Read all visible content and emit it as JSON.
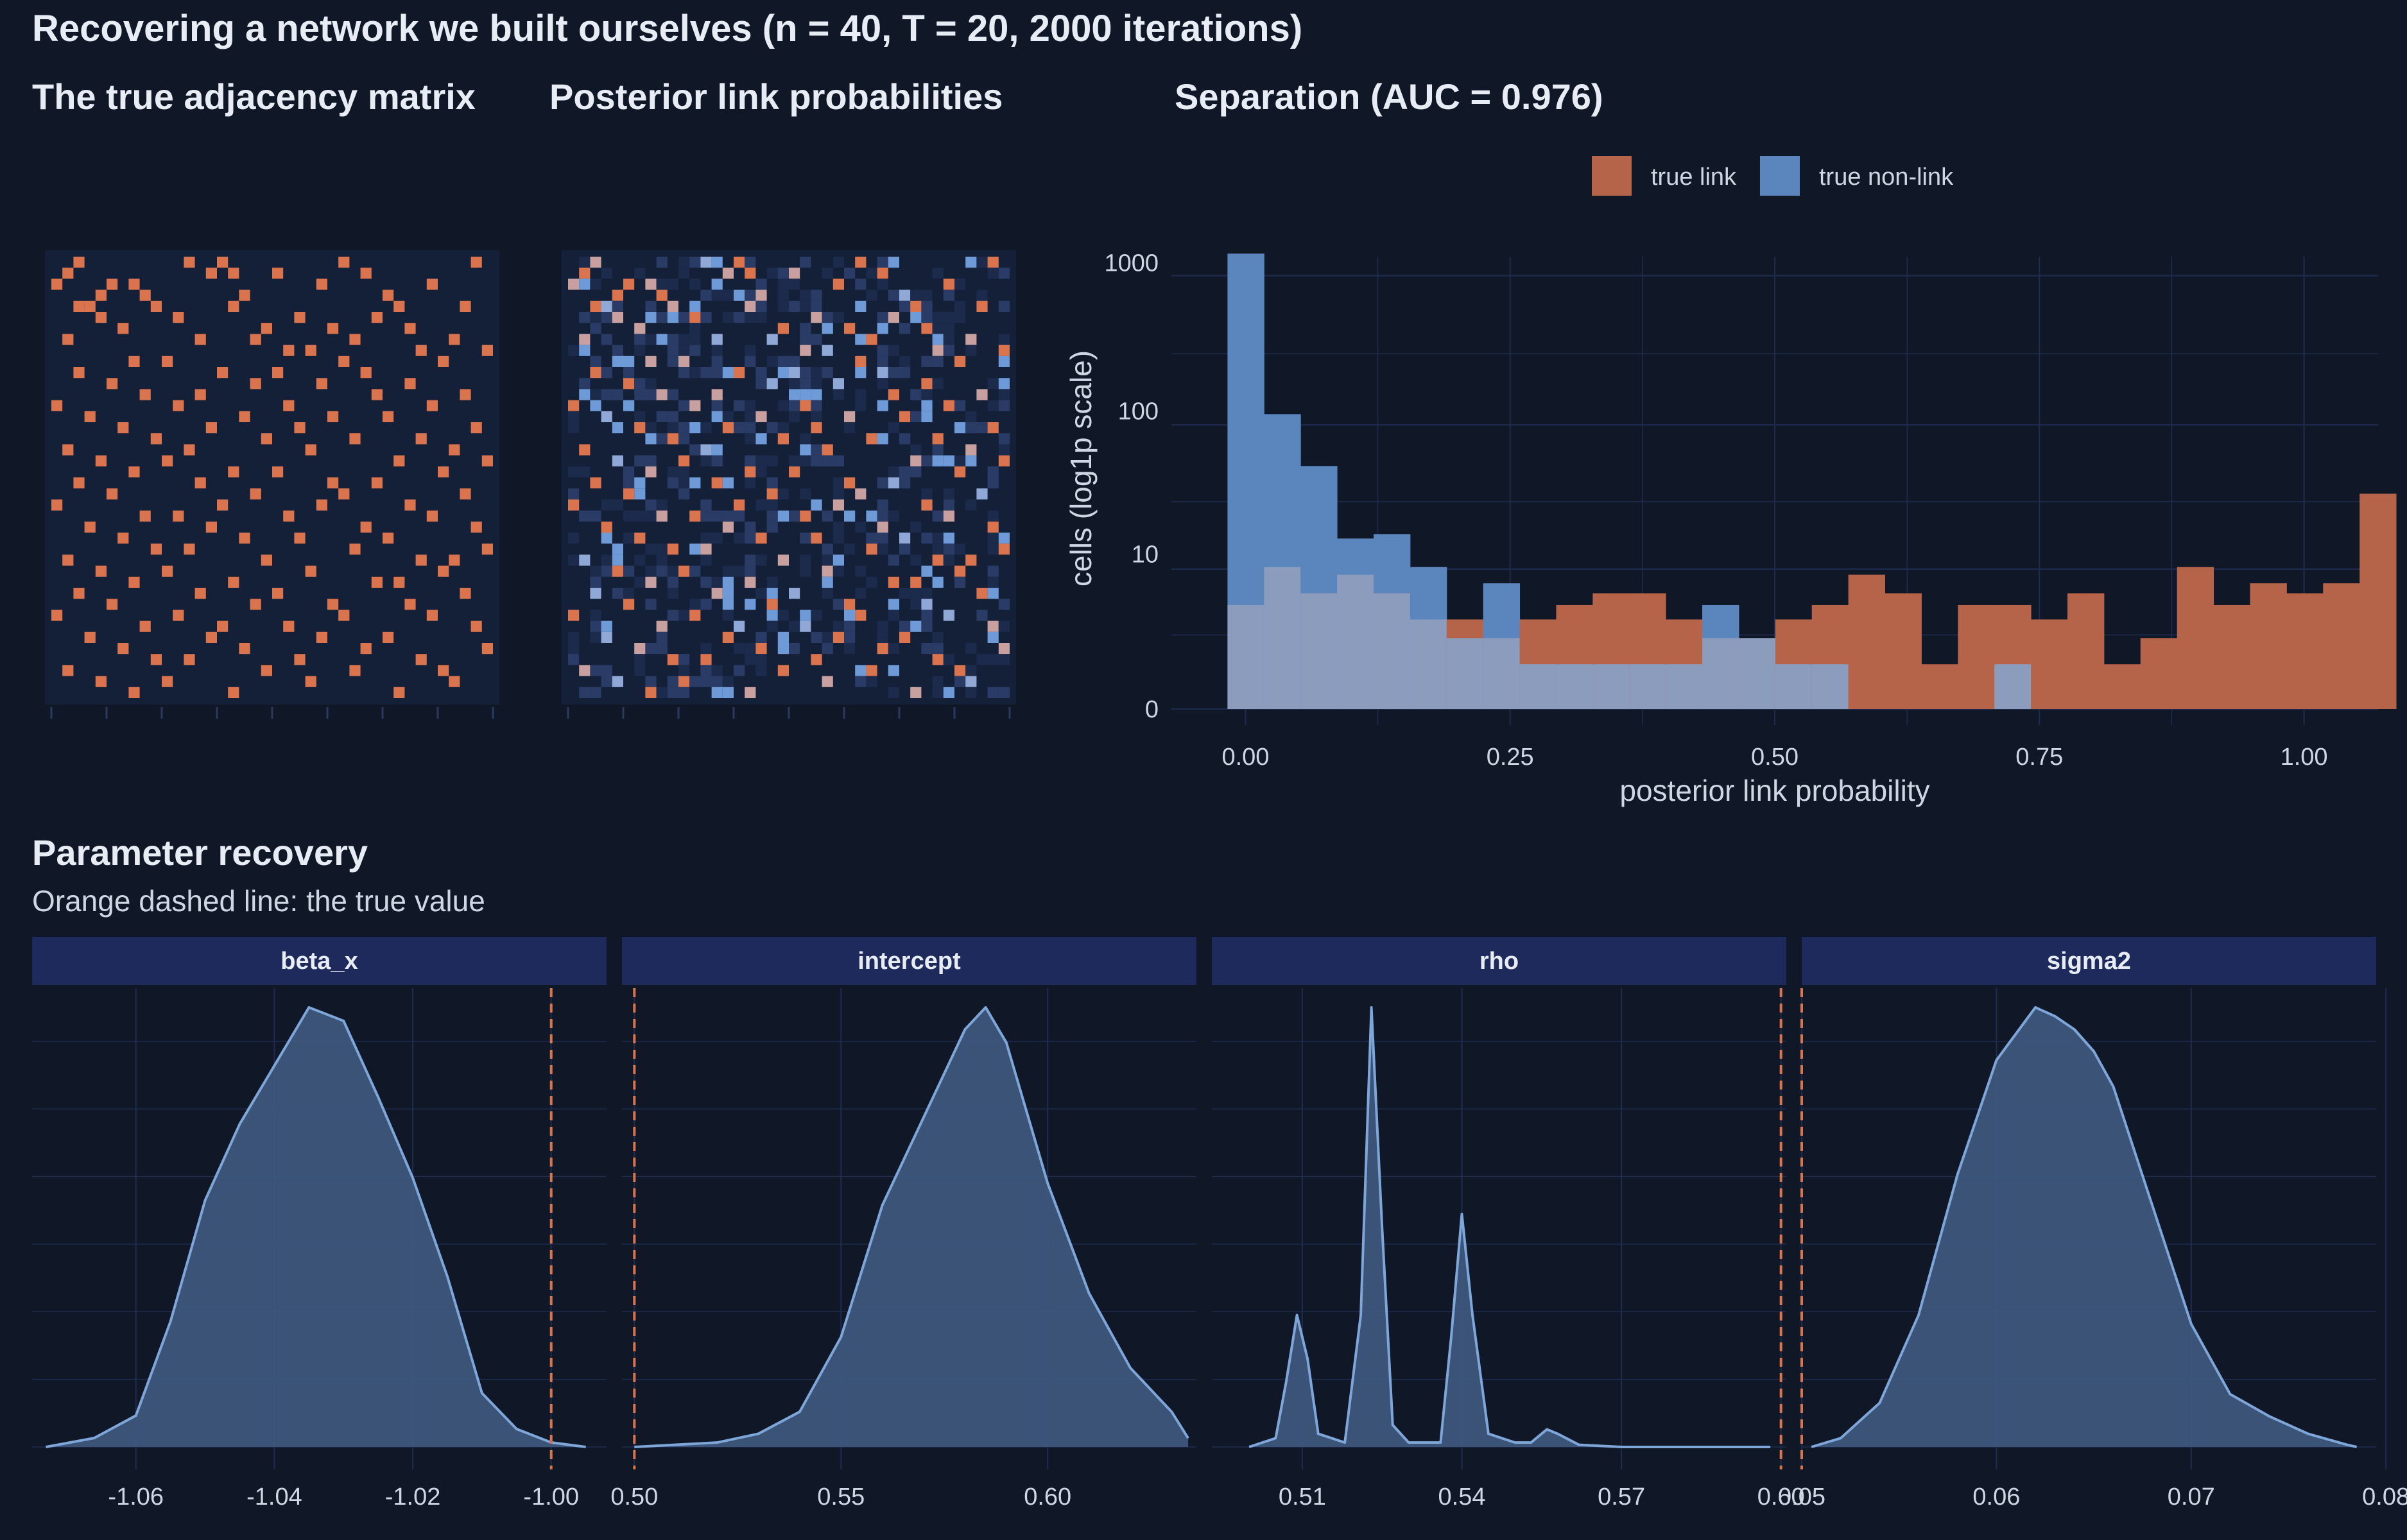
{
  "page": {
    "title": "Recovering a network we built ourselves (n = 40, T = 20, 2000 iterations)"
  },
  "colors": {
    "background": "#101828",
    "panel": "#141f38",
    "grid": "#1f2c4f",
    "link": "#d9744f",
    "nonlink": "#5a86bd",
    "overlap": "#8b9cbd",
    "density_fill": "#3f5a80",
    "density_line": "#7ea6d8",
    "strip": "#1e2a5c",
    "text": "#e8ecf5",
    "tick_text": "#cfd6e4"
  },
  "chart_data": [
    {
      "type": "heatmap",
      "title": "The true adjacency matrix",
      "n": 40,
      "values_description_note": "",
      "links": [
        [
          1,
          3
        ],
        [
          1,
          13
        ],
        [
          1,
          16
        ],
        [
          1,
          27
        ],
        [
          1,
          39
        ],
        [
          2,
          2
        ],
        [
          2,
          15
        ],
        [
          2,
          17
        ],
        [
          2,
          21
        ],
        [
          2,
          29
        ],
        [
          3,
          1
        ],
        [
          3,
          6
        ],
        [
          3,
          8
        ],
        [
          3,
          25
        ],
        [
          3,
          35
        ],
        [
          4,
          5
        ],
        [
          4,
          9
        ],
        [
          4,
          18
        ],
        [
          4,
          31
        ],
        [
          5,
          3
        ],
        [
          5,
          4
        ],
        [
          5,
          10
        ],
        [
          5,
          17
        ],
        [
          5,
          32
        ],
        [
          5,
          38
        ],
        [
          6,
          5
        ],
        [
          6,
          12
        ],
        [
          6,
          23
        ],
        [
          6,
          30
        ],
        [
          7,
          7
        ],
        [
          7,
          20
        ],
        [
          7,
          26
        ],
        [
          7,
          33
        ],
        [
          8,
          2
        ],
        [
          8,
          14
        ],
        [
          8,
          19
        ],
        [
          8,
          28
        ],
        [
          8,
          37
        ],
        [
          9,
          22
        ],
        [
          9,
          24
        ],
        [
          9,
          34
        ],
        [
          9,
          40
        ],
        [
          10,
          8
        ],
        [
          10,
          11
        ],
        [
          10,
          27
        ],
        [
          10,
          36
        ],
        [
          11,
          3
        ],
        [
          11,
          16
        ],
        [
          11,
          21
        ],
        [
          11,
          29
        ],
        [
          12,
          6
        ],
        [
          12,
          19
        ],
        [
          12,
          25
        ],
        [
          12,
          33
        ],
        [
          13,
          9
        ],
        [
          13,
          14
        ],
        [
          13,
          30
        ],
        [
          13,
          38
        ],
        [
          14,
          1
        ],
        [
          14,
          12
        ],
        [
          14,
          22
        ],
        [
          14,
          35
        ],
        [
          15,
          4
        ],
        [
          15,
          18
        ],
        [
          15,
          26
        ],
        [
          15,
          31
        ],
        [
          16,
          7
        ],
        [
          16,
          15
        ],
        [
          16,
          23
        ],
        [
          16,
          39
        ],
        [
          17,
          10
        ],
        [
          17,
          20
        ],
        [
          17,
          28
        ],
        [
          17,
          34
        ],
        [
          18,
          2
        ],
        [
          18,
          13
        ],
        [
          18,
          24
        ],
        [
          18,
          37
        ],
        [
          19,
          5
        ],
        [
          19,
          11
        ],
        [
          19,
          32
        ],
        [
          19,
          40
        ],
        [
          20,
          8
        ],
        [
          20,
          17
        ],
        [
          20,
          21
        ],
        [
          20,
          36
        ],
        [
          21,
          3
        ],
        [
          21,
          14
        ],
        [
          21,
          26
        ],
        [
          21,
          30
        ],
        [
          22,
          6
        ],
        [
          22,
          19
        ],
        [
          22,
          27
        ],
        [
          22,
          38
        ],
        [
          23,
          1
        ],
        [
          23,
          16
        ],
        [
          23,
          25
        ],
        [
          23,
          33
        ],
        [
          24,
          9
        ],
        [
          24,
          12
        ],
        [
          24,
          22
        ],
        [
          24,
          35
        ],
        [
          25,
          4
        ],
        [
          25,
          15
        ],
        [
          25,
          29
        ],
        [
          25,
          39
        ],
        [
          26,
          7
        ],
        [
          26,
          18
        ],
        [
          26,
          23
        ],
        [
          26,
          31
        ],
        [
          27,
          10
        ],
        [
          27,
          13
        ],
        [
          27,
          28
        ],
        [
          27,
          40
        ],
        [
          28,
          2
        ],
        [
          28,
          20
        ],
        [
          28,
          34
        ],
        [
          28,
          37
        ],
        [
          29,
          5
        ],
        [
          29,
          11
        ],
        [
          29,
          24
        ],
        [
          29,
          36
        ],
        [
          30,
          8
        ],
        [
          30,
          17
        ],
        [
          30,
          30
        ],
        [
          30,
          32
        ],
        [
          31,
          3
        ],
        [
          31,
          14
        ],
        [
          31,
          21
        ],
        [
          31,
          38
        ],
        [
          32,
          6
        ],
        [
          32,
          19
        ],
        [
          32,
          26
        ],
        [
          32,
          33
        ],
        [
          33,
          1
        ],
        [
          33,
          12
        ],
        [
          33,
          27
        ],
        [
          33,
          35
        ],
        [
          34,
          9
        ],
        [
          34,
          16
        ],
        [
          34,
          22
        ],
        [
          34,
          39
        ],
        [
          35,
          4
        ],
        [
          35,
          15
        ],
        [
          35,
          25
        ],
        [
          35,
          31
        ],
        [
          36,
          7
        ],
        [
          36,
          18
        ],
        [
          36,
          29
        ],
        [
          36,
          40
        ],
        [
          37,
          10
        ],
        [
          37,
          13
        ],
        [
          37,
          23
        ],
        [
          37,
          34
        ],
        [
          38,
          2
        ],
        [
          38,
          20
        ],
        [
          38,
          28
        ],
        [
          38,
          36
        ],
        [
          39,
          5
        ],
        [
          39,
          11
        ],
        [
          39,
          24
        ],
        [
          39,
          37
        ],
        [
          40,
          8
        ],
        [
          40,
          17
        ],
        [
          40,
          32
        ]
      ]
    },
    {
      "type": "heatmap",
      "title": "Posterior link probabilities",
      "n": 40
    },
    {
      "type": "bar",
      "title": "Separation (AUC = 0.976)",
      "xlabel": "posterior link probability",
      "ylabel": "cells (log1p scale)",
      "x_ticks": [
        "0.00",
        "0.25",
        "0.50",
        "0.75",
        "1.00"
      ],
      "y_ticks": [
        "0",
        "10",
        "100",
        "1000"
      ],
      "xlim": [
        -0.07,
        1.07
      ],
      "ylim_log1p": [
        0,
        7.2
      ],
      "bin_width": 0.0345,
      "bin_start": -0.017,
      "legend": {
        "placement": "top",
        "entries": [
          "true link",
          "true non-link"
        ]
      },
      "series": [
        {
          "name": "true link",
          "values": [
            4,
            8,
            5,
            7,
            5,
            3,
            3,
            2,
            3,
            4,
            5,
            5,
            3,
            2,
            2,
            3,
            4,
            7,
            5,
            1,
            4,
            4,
            3,
            5,
            1,
            2,
            8,
            4,
            6,
            5,
            6,
            27
          ]
        },
        {
          "name": "true non-link",
          "values": [
            1150,
            95,
            42,
            13,
            14,
            8,
            2,
            6,
            1,
            1,
            1,
            1,
            1,
            4,
            2,
            1,
            1,
            0,
            0,
            0,
            0,
            1,
            0,
            0,
            0,
            0,
            0,
            0,
            0,
            0,
            0,
            0
          ]
        }
      ]
    },
    {
      "type": "area",
      "title": "Parameter recovery",
      "subtitle": "Orange dashed line: the true value",
      "facets": [
        {
          "name": "beta_x",
          "xlim": [
            -1.075,
            -0.992
          ],
          "ticks": [
            -1.06,
            -1.04,
            -1.02,
            -1.0
          ],
          "tick_labels": [
            "-1.06",
            "-1.04",
            "-1.02",
            "-1.00"
          ],
          "true_value": -1.0,
          "density_x": [
            -1.073,
            -1.066,
            -1.06,
            -1.055,
            -1.05,
            -1.045,
            -1.04,
            -1.035,
            -1.03,
            -1.025,
            -1.02,
            -1.015,
            -1.01,
            -1.005,
            -1.0,
            -0.995
          ],
          "density_y": [
            0.0,
            0.02,
            0.07,
            0.28,
            0.55,
            0.72,
            0.85,
            0.98,
            0.95,
            0.78,
            0.6,
            0.38,
            0.12,
            0.04,
            0.01,
            0.0
          ]
        },
        {
          "name": "intercept",
          "xlim": [
            0.497,
            0.636
          ],
          "ticks": [
            0.5,
            0.55,
            0.6
          ],
          "tick_labels": [
            "0.50",
            "0.55",
            "0.60"
          ],
          "true_value": 0.5,
          "density_x": [
            0.5,
            0.52,
            0.53,
            0.54,
            0.55,
            0.56,
            0.57,
            0.58,
            0.585,
            0.59,
            0.6,
            0.61,
            0.62,
            0.63,
            0.634
          ],
          "density_y": [
            0.0,
            0.01,
            0.03,
            0.08,
            0.25,
            0.55,
            0.75,
            0.95,
            1.0,
            0.92,
            0.6,
            0.35,
            0.18,
            0.08,
            0.02
          ]
        },
        {
          "name": "rho",
          "xlim": [
            0.493,
            0.601
          ],
          "ticks": [
            0.51,
            0.54,
            0.57,
            0.6
          ],
          "tick_labels": [
            "0.51",
            "0.54",
            "0.57",
            "0.60"
          ],
          "true_value": 0.6,
          "density_x": [
            0.5,
            0.505,
            0.507,
            0.509,
            0.511,
            0.513,
            0.518,
            0.521,
            0.523,
            0.525,
            0.527,
            0.53,
            0.536,
            0.538,
            0.54,
            0.542,
            0.545,
            0.55,
            0.553,
            0.556,
            0.558,
            0.562,
            0.57,
            0.598
          ],
          "density_y": [
            0.0,
            0.02,
            0.15,
            0.3,
            0.2,
            0.03,
            0.01,
            0.3,
            1.0,
            0.5,
            0.05,
            0.01,
            0.01,
            0.25,
            0.53,
            0.3,
            0.03,
            0.01,
            0.01,
            0.04,
            0.03,
            0.005,
            0.0,
            0.0
          ]
        },
        {
          "name": "sigma2",
          "xlim": [
            0.05,
            0.0795
          ],
          "ticks": [
            0.05,
            0.06,
            0.07,
            0.08
          ],
          "tick_labels": [
            "0.05",
            "0.06",
            "0.07",
            "0.08"
          ],
          "true_value": 0.05,
          "density_x": [
            0.0505,
            0.052,
            0.054,
            0.056,
            0.058,
            0.06,
            0.062,
            0.063,
            0.064,
            0.065,
            0.066,
            0.068,
            0.07,
            0.072,
            0.074,
            0.076,
            0.078,
            0.0785
          ],
          "density_y": [
            0.0,
            0.02,
            0.1,
            0.3,
            0.62,
            0.88,
            1.0,
            0.98,
            0.95,
            0.9,
            0.82,
            0.55,
            0.28,
            0.12,
            0.07,
            0.03,
            0.005,
            0.0
          ]
        }
      ]
    }
  ]
}
